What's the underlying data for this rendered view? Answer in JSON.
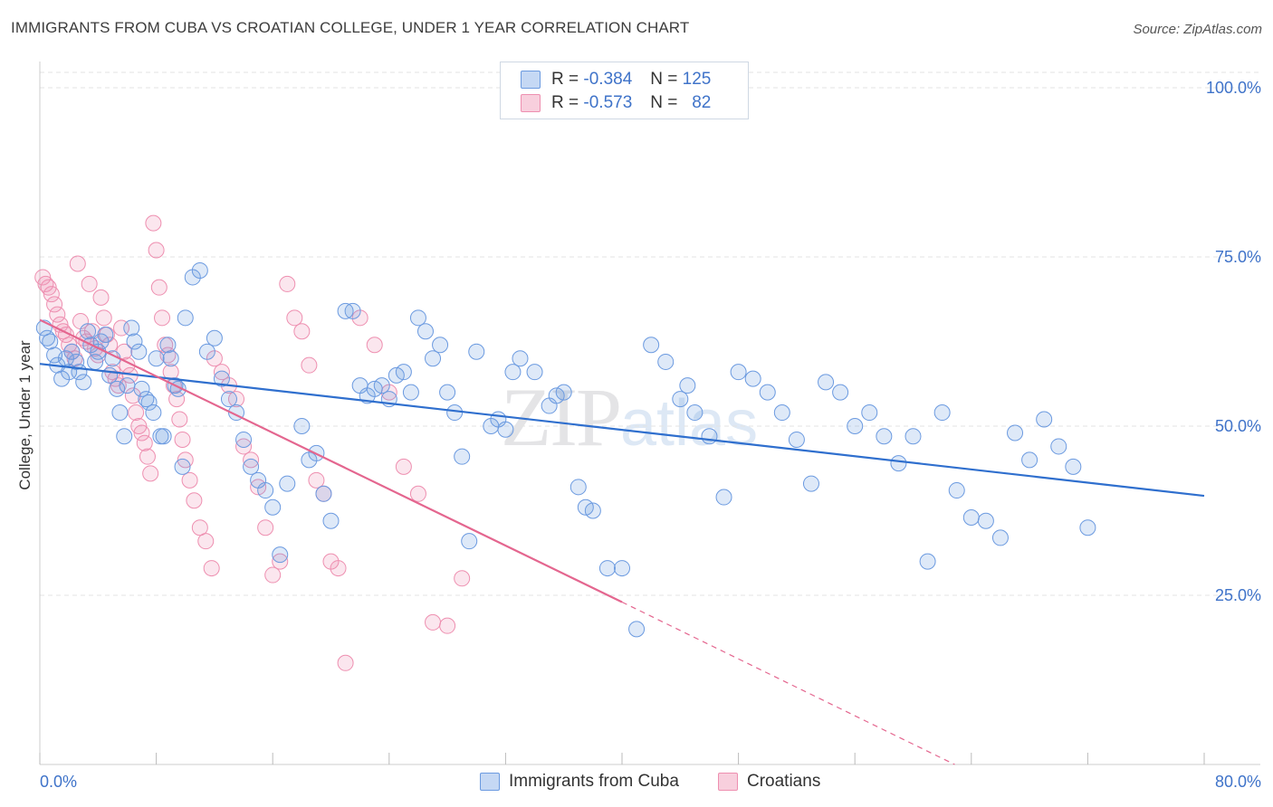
{
  "title": "IMMIGRANTS FROM CUBA VS CROATIAN COLLEGE, UNDER 1 YEAR CORRELATION CHART",
  "source": "Source: ZipAtlas.com",
  "watermark": {
    "zip": "ZIP",
    "atlas": "atlas"
  },
  "legend": [
    {
      "r_label": "R =",
      "r_value": "-0.384",
      "n_label": "N =",
      "n_value": "125"
    },
    {
      "r_label": "R =",
      "r_value": "-0.573",
      "n_label": "N =",
      "n_value": "82"
    }
  ],
  "colors": {
    "blue": "#6b9ae0",
    "pink": "#ee8fb0",
    "blue_line": "#2f6fce",
    "pink_line": "#e4668f",
    "accent_text": "#3f73c9"
  },
  "chart_data": {
    "type": "scatter",
    "title": "IMMIGRANTS FROM CUBA VS CROATIAN COLLEGE, UNDER 1 YEAR CORRELATION CHART",
    "xlabel": "",
    "ylabel": "College, Under 1 year",
    "xlim": [
      0,
      80
    ],
    "ylim": [
      5,
      105
    ],
    "x_tick_labels": [
      "0.0%",
      "80.0%"
    ],
    "y_ticks": [
      25,
      50,
      75,
      100
    ],
    "y_tick_labels": [
      "25.0%",
      "50.0%",
      "75.0%",
      "100.0%"
    ],
    "grid": true,
    "legend_position": "top-center",
    "series": [
      {
        "name": "Immigrants from Cuba",
        "color": "#6b9ae0",
        "trend": {
          "x": [
            0,
            80
          ],
          "y": [
            59.2,
            39.7
          ],
          "style": "solid"
        },
        "points": [
          [
            0.3,
            64.5
          ],
          [
            0.5,
            63
          ],
          [
            0.7,
            62.5
          ],
          [
            1,
            60.5
          ],
          [
            1.2,
            59
          ],
          [
            1.5,
            57
          ],
          [
            1.8,
            60
          ],
          [
            2,
            58
          ],
          [
            2.2,
            61
          ],
          [
            2.5,
            59.5
          ],
          [
            2.7,
            58
          ],
          [
            3,
            56.5
          ],
          [
            3.3,
            64
          ],
          [
            3.5,
            62
          ],
          [
            3.8,
            59.5
          ],
          [
            4,
            61
          ],
          [
            4.2,
            62.5
          ],
          [
            4.5,
            63.5
          ],
          [
            4.8,
            57.5
          ],
          [
            5,
            60
          ],
          [
            5.3,
            55.5
          ],
          [
            5.5,
            52
          ],
          [
            5.8,
            48.5
          ],
          [
            6,
            56
          ],
          [
            6.3,
            64.5
          ],
          [
            6.5,
            62.5
          ],
          [
            6.8,
            61
          ],
          [
            7,
            55.5
          ],
          [
            7.3,
            54
          ],
          [
            7.5,
            53.5
          ],
          [
            7.8,
            52
          ],
          [
            8,
            60
          ],
          [
            8.3,
            48.5
          ],
          [
            8.5,
            48.5
          ],
          [
            8.8,
            62
          ],
          [
            9,
            60
          ],
          [
            9.3,
            56
          ],
          [
            9.5,
            55.5
          ],
          [
            9.8,
            44
          ],
          [
            10,
            66
          ],
          [
            10.5,
            72
          ],
          [
            11,
            73
          ],
          [
            11.5,
            61
          ],
          [
            12,
            63
          ],
          [
            12.5,
            57
          ],
          [
            13,
            54
          ],
          [
            13.5,
            52
          ],
          [
            14,
            48
          ],
          [
            14.5,
            44
          ],
          [
            15,
            42
          ],
          [
            15.5,
            40.5
          ],
          [
            16,
            38
          ],
          [
            16.5,
            31
          ],
          [
            17,
            41.5
          ],
          [
            18,
            50
          ],
          [
            18.5,
            45
          ],
          [
            19,
            46
          ],
          [
            19.5,
            40
          ],
          [
            20,
            36
          ],
          [
            21,
            67
          ],
          [
            21.5,
            67
          ],
          [
            22,
            56
          ],
          [
            22.5,
            54.5
          ],
          [
            23,
            55.5
          ],
          [
            23.5,
            56
          ],
          [
            24,
            54
          ],
          [
            24.5,
            57.5
          ],
          [
            25,
            58
          ],
          [
            25.5,
            55
          ],
          [
            26,
            66
          ],
          [
            26.5,
            64
          ],
          [
            27,
            60
          ],
          [
            27.5,
            62
          ],
          [
            28,
            55
          ],
          [
            28.5,
            52
          ],
          [
            29,
            45.5
          ],
          [
            29.5,
            33
          ],
          [
            30,
            61
          ],
          [
            31,
            50
          ],
          [
            31.5,
            51
          ],
          [
            32,
            49.5
          ],
          [
            32.5,
            58
          ],
          [
            33,
            60
          ],
          [
            34,
            58
          ],
          [
            35,
            53
          ],
          [
            35.5,
            54.5
          ],
          [
            36,
            55
          ],
          [
            37,
            41
          ],
          [
            37.5,
            38
          ],
          [
            38,
            37.5
          ],
          [
            39,
            29
          ],
          [
            40,
            29
          ],
          [
            41,
            20
          ],
          [
            42,
            62
          ],
          [
            43,
            59.5
          ],
          [
            44,
            54
          ],
          [
            44.5,
            56
          ],
          [
            45,
            52
          ],
          [
            46,
            48.5
          ],
          [
            47,
            39.5
          ],
          [
            48,
            58
          ],
          [
            49,
            57
          ],
          [
            50,
            55
          ],
          [
            51,
            52
          ],
          [
            52,
            48
          ],
          [
            53,
            41.5
          ],
          [
            54,
            56.5
          ],
          [
            55,
            55
          ],
          [
            56,
            50
          ],
          [
            57,
            52
          ],
          [
            58,
            48.5
          ],
          [
            59,
            44.5
          ],
          [
            60,
            48.5
          ],
          [
            61,
            30
          ],
          [
            62,
            52
          ],
          [
            63,
            40.5
          ],
          [
            64,
            36.5
          ],
          [
            65,
            36
          ],
          [
            66,
            33.5
          ],
          [
            67,
            49
          ],
          [
            68,
            45
          ],
          [
            69,
            51
          ],
          [
            70,
            47
          ],
          [
            71,
            44
          ],
          [
            72,
            35
          ]
        ]
      },
      {
        "name": "Croatians",
        "color": "#ee8fb0",
        "trend": {
          "x": [
            0,
            40
          ],
          "y": [
            65.7,
            24
          ],
          "style": "solid",
          "dashed_extension": {
            "x": [
              40,
              80
            ],
            "y": [
              24,
              -18
            ]
          }
        },
        "points": [
          [
            0.2,
            72
          ],
          [
            0.4,
            71
          ],
          [
            0.6,
            70.5
          ],
          [
            0.8,
            69.5
          ],
          [
            1,
            68
          ],
          [
            1.2,
            66.5
          ],
          [
            1.4,
            65
          ],
          [
            1.6,
            64
          ],
          [
            1.8,
            63.5
          ],
          [
            2,
            62
          ],
          [
            2.2,
            61
          ],
          [
            2.4,
            60
          ],
          [
            2.6,
            74
          ],
          [
            2.8,
            65.5
          ],
          [
            3,
            63
          ],
          [
            3.2,
            62.5
          ],
          [
            3.4,
            71
          ],
          [
            3.6,
            64
          ],
          [
            3.8,
            61.5
          ],
          [
            4,
            60.5
          ],
          [
            4.2,
            69
          ],
          [
            4.4,
            66
          ],
          [
            4.6,
            63.5
          ],
          [
            4.8,
            62
          ],
          [
            5,
            58
          ],
          [
            5.2,
            57
          ],
          [
            5.4,
            56
          ],
          [
            5.6,
            64.5
          ],
          [
            5.8,
            61
          ],
          [
            6,
            59
          ],
          [
            6.2,
            57.5
          ],
          [
            6.4,
            54.5
          ],
          [
            6.6,
            52
          ],
          [
            6.8,
            50
          ],
          [
            7,
            49
          ],
          [
            7.2,
            47.5
          ],
          [
            7.4,
            45.5
          ],
          [
            7.6,
            43
          ],
          [
            7.8,
            80
          ],
          [
            8,
            76
          ],
          [
            8.2,
            70.5
          ],
          [
            8.4,
            66
          ],
          [
            8.6,
            62
          ],
          [
            8.8,
            60.5
          ],
          [
            9,
            58
          ],
          [
            9.2,
            56
          ],
          [
            9.4,
            54
          ],
          [
            9.6,
            51
          ],
          [
            9.8,
            48
          ],
          [
            10,
            45
          ],
          [
            10.3,
            42
          ],
          [
            10.6,
            39
          ],
          [
            11,
            35
          ],
          [
            11.4,
            33
          ],
          [
            11.8,
            29
          ],
          [
            12,
            60
          ],
          [
            12.5,
            58
          ],
          [
            13,
            56
          ],
          [
            13.5,
            54
          ],
          [
            14,
            47
          ],
          [
            14.5,
            45
          ],
          [
            15,
            41
          ],
          [
            15.5,
            35
          ],
          [
            16,
            28
          ],
          [
            16.5,
            30
          ],
          [
            17,
            71
          ],
          [
            17.5,
            66
          ],
          [
            18,
            64
          ],
          [
            18.5,
            59
          ],
          [
            19,
            42
          ],
          [
            19.5,
            40
          ],
          [
            20,
            30
          ],
          [
            20.5,
            29
          ],
          [
            21,
            15
          ],
          [
            22,
            66
          ],
          [
            23,
            62
          ],
          [
            24,
            55
          ],
          [
            25,
            44
          ],
          [
            26,
            40
          ],
          [
            27,
            21
          ],
          [
            28,
            20.5
          ],
          [
            29,
            27.5
          ]
        ]
      }
    ]
  }
}
